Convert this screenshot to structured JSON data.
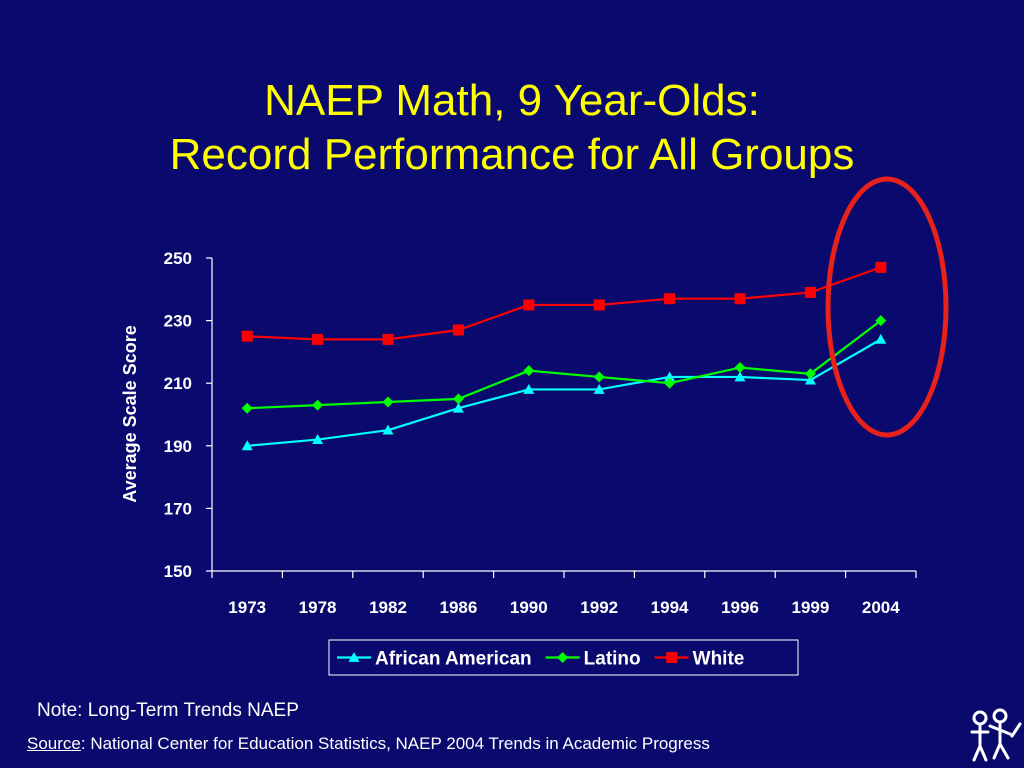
{
  "slide": {
    "title_line1": "NAEP Math, 9 Year-Olds:",
    "title_line2": "Record Performance for All Groups",
    "note": "Note: Long-Term Trends NAEP",
    "source_label": "Source",
    "source_text": ": National Center for Education Statistics, NAEP 2004 Trends in Academic Progress"
  },
  "colors": {
    "background": "#0a0a6e",
    "title": "#ffff00",
    "highlight_ellipse": "#e8211b"
  },
  "chart_data": {
    "type": "line",
    "title": "",
    "xlabel": "",
    "ylabel": "Average Scale Score",
    "ylim": [
      150,
      250
    ],
    "yticks": [
      150,
      170,
      190,
      210,
      230,
      250
    ],
    "categories": [
      "1973",
      "1978",
      "1982",
      "1986",
      "1990",
      "1992",
      "1994",
      "1996",
      "1999",
      "2004"
    ],
    "legend_position": "bottom",
    "grid": false,
    "series": [
      {
        "name": "African American",
        "color": "#00ffff",
        "marker": "triangle",
        "values": [
          190,
          192,
          195,
          202,
          208,
          208,
          212,
          212,
          211,
          224
        ]
      },
      {
        "name": "Latino",
        "color": "#00ff00",
        "marker": "diamond",
        "values": [
          202,
          203,
          204,
          205,
          214,
          212,
          210,
          215,
          213,
          230
        ]
      },
      {
        "name": "White",
        "color": "#ff0000",
        "marker": "square",
        "values": [
          225,
          224,
          224,
          227,
          235,
          235,
          237,
          237,
          239,
          247
        ]
      }
    ],
    "annotation": "2004 values circled"
  }
}
